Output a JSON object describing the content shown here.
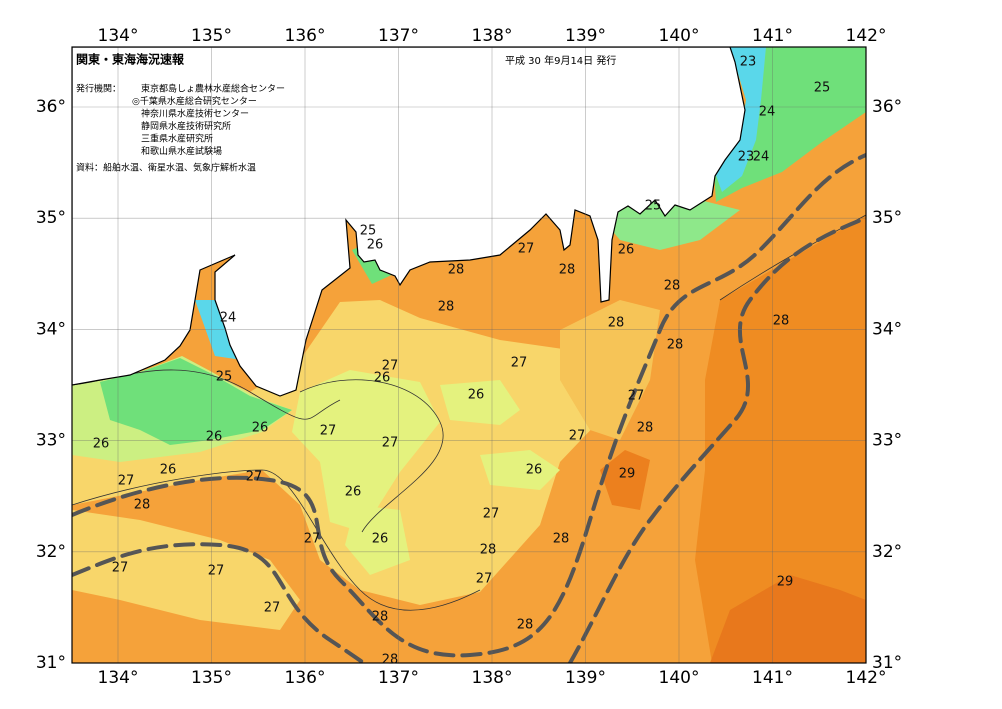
{
  "header": {
    "title": "関東・東海海況速報",
    "date": "平成 30 年9月14日 発行"
  },
  "agencies_label": "発行機関：",
  "agencies": [
    "東京都島しょ農林水産総合センター",
    "◎千葉県水産総合研究センター",
    "神奈川県水産技術センター",
    "静岡県水産技術研究所",
    "三重県水産研究所",
    "和歌山県水産試験場"
  ],
  "source": "資料：船舶水温、衛星水温、気象庁解析水温",
  "lon_ticks": [
    {
      "value": 134,
      "label": "134°"
    },
    {
      "value": 135,
      "label": "135°"
    },
    {
      "value": 136,
      "label": "136°"
    },
    {
      "value": 137,
      "label": "137°"
    },
    {
      "value": 138,
      "label": "138°"
    },
    {
      "value": 139,
      "label": "139°"
    },
    {
      "value": 140,
      "label": "140°"
    },
    {
      "value": 141,
      "label": "141°"
    },
    {
      "value": 142,
      "label": "142°"
    }
  ],
  "lat_ticks": [
    {
      "value": 31,
      "label": "31°"
    },
    {
      "value": 32,
      "label": "32°"
    },
    {
      "value": 33,
      "label": "33°"
    },
    {
      "value": 34,
      "label": "34°"
    },
    {
      "value": 35,
      "label": "35°"
    },
    {
      "value": 36,
      "label": "36°"
    }
  ],
  "contour_labels": [
    23,
    25,
    24,
    23,
    24,
    25,
    25,
    26,
    27,
    26,
    28,
    28,
    28,
    28,
    24,
    28,
    28,
    28,
    27,
    27,
    26,
    25,
    26,
    27,
    26,
    27,
    28,
    26,
    26,
    27,
    27,
    27,
    26,
    29,
    26,
    27,
    28,
    26,
    27,
    26,
    27,
    28,
    28,
    27,
    27,
    27,
    29,
    27,
    28,
    28,
    28
  ]
}
